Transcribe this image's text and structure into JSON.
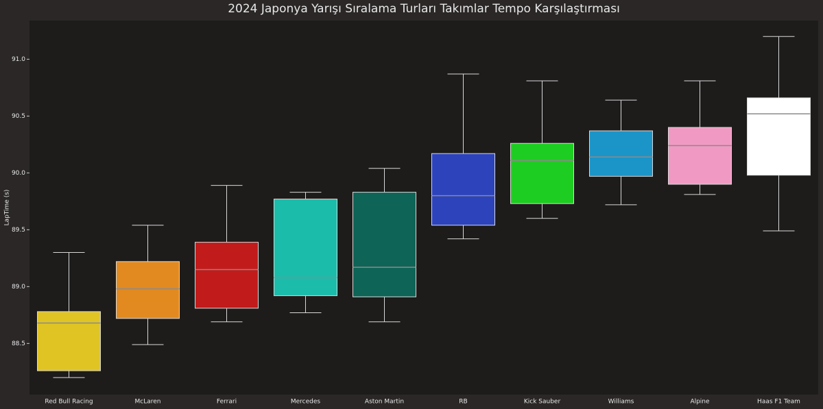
{
  "chart_data": {
    "type": "box",
    "title": "2024 Japonya Yarışı Sıralama Turları Takımlar Tempo Karşılaştırması",
    "y_label": "LapTime (s)",
    "categories": [
      "Red Bull Racing",
      "McLaren",
      "Ferrari",
      "Mercedes",
      "Aston Martin",
      "RB",
      "Kick Sauber",
      "Williams",
      "Alpine",
      "Haas F1 Team"
    ],
    "colors": [
      "#e0c424",
      "#e28a20",
      "#c21b1b",
      "#1cbcab",
      "#0e6457",
      "#2d43bb",
      "#1ecd21",
      "#1b95c8",
      "#f09ac3",
      "#ffffff"
    ],
    "boxes": [
      {
        "whislo": 88.2,
        "q1": 88.26,
        "med": 88.68,
        "q3": 88.78,
        "whishi": 89.3
      },
      {
        "whislo": 88.49,
        "q1": 88.72,
        "med": 88.98,
        "q3": 89.22,
        "whishi": 89.54
      },
      {
        "whislo": 88.69,
        "q1": 88.81,
        "med": 89.15,
        "q3": 89.39,
        "whishi": 89.89
      },
      {
        "whislo": 88.77,
        "q1": 88.92,
        "med": 89.08,
        "q3": 89.77,
        "whishi": 89.83
      },
      {
        "whislo": 88.69,
        "q1": 88.91,
        "med": 89.17,
        "q3": 89.83,
        "whishi": 90.04
      },
      {
        "whislo": 89.42,
        "q1": 89.54,
        "med": 89.8,
        "q3": 90.17,
        "whishi": 90.87
      },
      {
        "whislo": 89.6,
        "q1": 89.73,
        "med": 90.11,
        "q3": 90.26,
        "whishi": 90.81
      },
      {
        "whislo": 89.72,
        "q1": 89.97,
        "med": 90.14,
        "q3": 90.37,
        "whishi": 90.64
      },
      {
        "whislo": 89.81,
        "q1": 89.9,
        "med": 90.24,
        "q3": 90.4,
        "whishi": 90.81
      },
      {
        "whislo": 89.49,
        "q1": 89.98,
        "med": 90.52,
        "q3": 90.66,
        "whishi": 91.2
      }
    ],
    "ylim": [
      88.05,
      91.34
    ],
    "yticks": [
      {
        "value": 88.5,
        "label": "88.5"
      },
      {
        "value": 89,
        "label": "89.0"
      },
      {
        "value": 89.5,
        "label": "89.5"
      },
      {
        "value": 90,
        "label": "90.0"
      },
      {
        "value": 90.5,
        "label": "90.5"
      },
      {
        "value": 91,
        "label": "91.0"
      }
    ]
  }
}
